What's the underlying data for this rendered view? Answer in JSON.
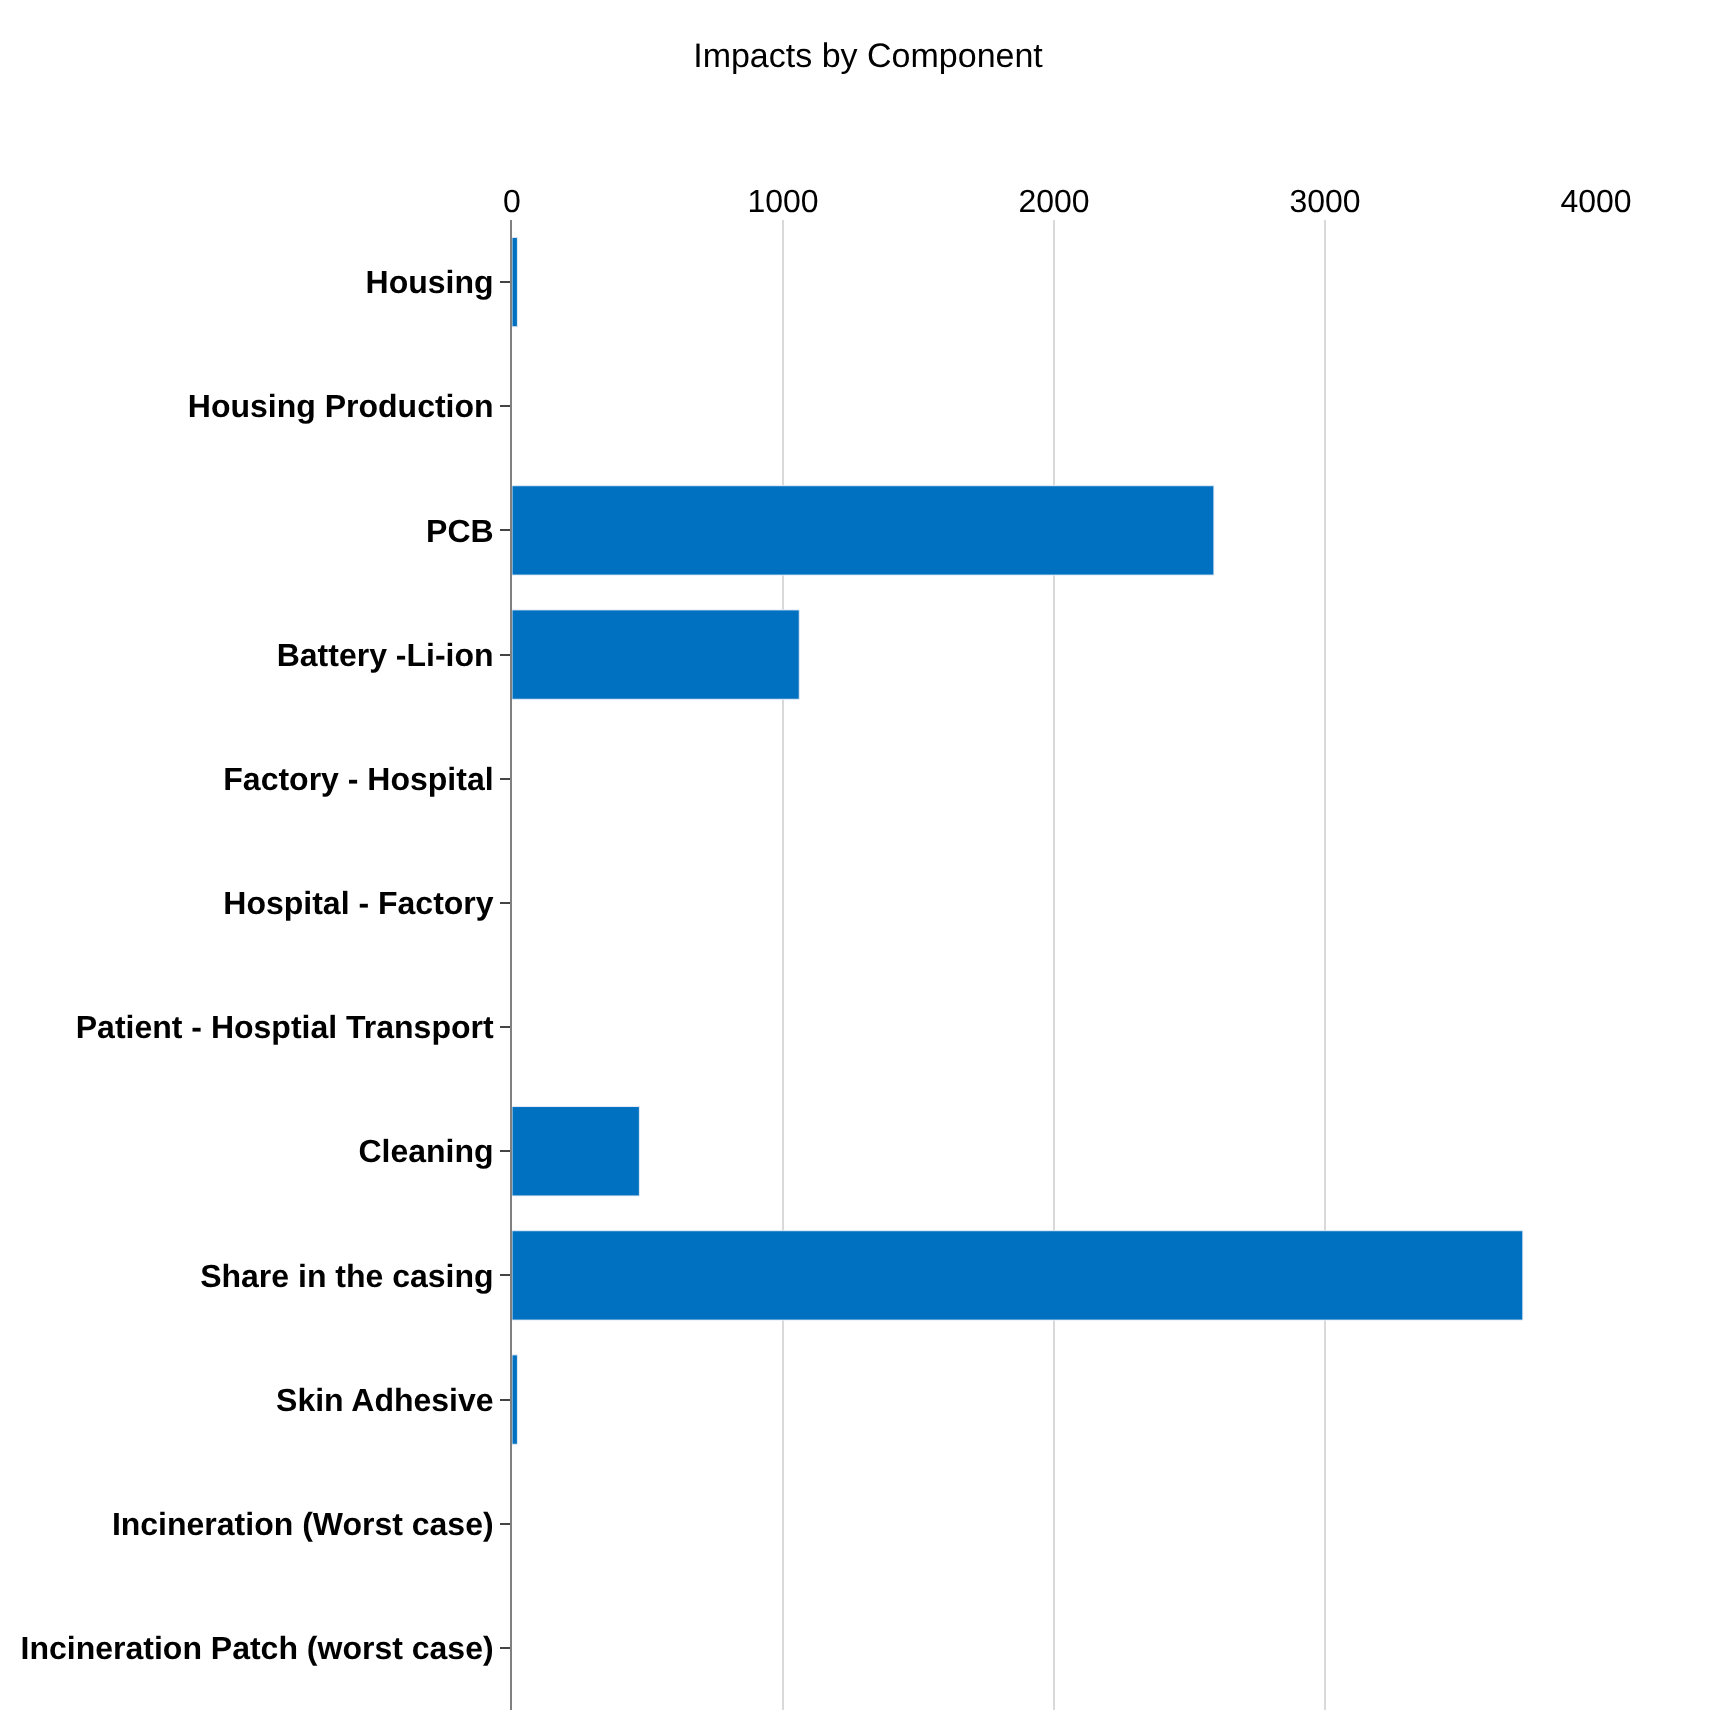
{
  "chart_data": {
    "type": "bar",
    "orientation": "horizontal",
    "title": "Impacts by Component",
    "categories": [
      "Housing",
      "Housing Production",
      "PCB",
      "Battery -Li-ion",
      "Factory - Hospital",
      "Hospital - Factory",
      "Patient - Hosptial Transport",
      "Cleaning",
      "Share in the casing",
      "Skin Adhesive",
      "Incineration (Worst case)",
      "Incineration Patch (worst case)"
    ],
    "values": [
      20,
      null,
      2590,
      1060,
      null,
      null,
      null,
      470,
      3730,
      20,
      null,
      null
    ],
    "color": "#0070c0",
    "xlim": [
      0,
      4000
    ],
    "xticks": [
      0,
      1000,
      2000,
      3000,
      4000
    ],
    "grid": "x"
  }
}
